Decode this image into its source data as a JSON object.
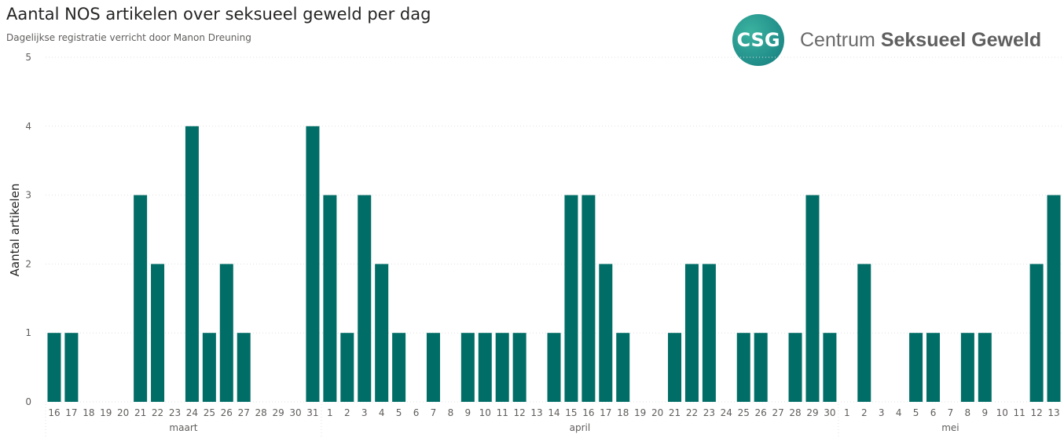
{
  "title": "Aantal NOS artikelen over seksueel geweld per dag",
  "subtitle": "Dagelijkse registratie verricht door Manon Dreuning",
  "logo": {
    "mark": "CSG",
    "name_light": "Centrum",
    "name_bold": "Seksueel Geweld"
  },
  "chart_data": {
    "type": "bar",
    "title": "Aantal NOS artikelen over seksueel geweld per dag",
    "ylabel": "Aantal artikelen",
    "xlabel": "",
    "ylim": [
      0,
      5
    ],
    "yticks": [
      0,
      1,
      2,
      3,
      4,
      5
    ],
    "grid": true,
    "color": "#006d66",
    "groups": [
      {
        "label": "maart",
        "days": [
          "16",
          "17",
          "18",
          "19",
          "20",
          "21",
          "22",
          "23",
          "24",
          "25",
          "26",
          "27",
          "28",
          "29",
          "30",
          "31"
        ],
        "values": [
          1,
          1,
          0,
          0,
          0,
          3,
          2,
          0,
          4,
          1,
          2,
          1,
          0,
          0,
          0,
          4
        ]
      },
      {
        "label": "april",
        "days": [
          "1",
          "2",
          "3",
          "4",
          "5",
          "6",
          "7",
          "8",
          "9",
          "10",
          "11",
          "12",
          "13",
          "14",
          "15",
          "16",
          "17",
          "18",
          "19",
          "20",
          "21",
          "22",
          "23",
          "24",
          "25",
          "26",
          "27",
          "28",
          "29",
          "30"
        ],
        "values": [
          3,
          1,
          3,
          2,
          1,
          0,
          1,
          0,
          1,
          1,
          1,
          1,
          0,
          1,
          3,
          3,
          2,
          1,
          0,
          0,
          1,
          2,
          2,
          0,
          1,
          1,
          0,
          1,
          3,
          1
        ]
      },
      {
        "label": "mei",
        "days": [
          "1",
          "2",
          "3",
          "4",
          "5",
          "6",
          "7",
          "8",
          "9",
          "10",
          "11",
          "12",
          "13"
        ],
        "values": [
          0,
          2,
          0,
          0,
          1,
          1,
          0,
          1,
          1,
          0,
          0,
          2,
          3
        ]
      }
    ]
  }
}
